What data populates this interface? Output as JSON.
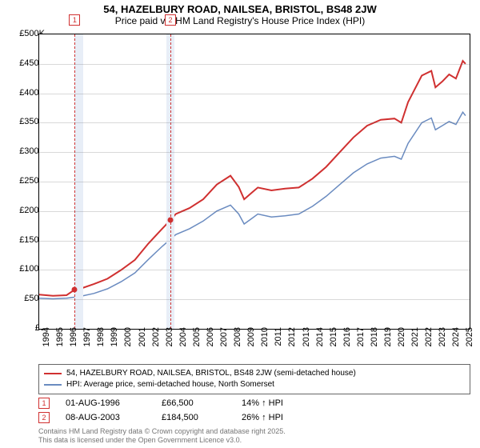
{
  "title": "54, HAZELBURY ROAD, NAILSEA, BRISTOL, BS48 2JW",
  "subtitle": "Price paid vs. HM Land Registry's House Price Index (HPI)",
  "chart": {
    "type": "line",
    "background_color": "#ffffff",
    "grid_color": "#aaaaaa",
    "shade_color": "#e8eef7",
    "x_domain": [
      1994,
      2025.5
    ],
    "y_domain": [
      0,
      500000
    ],
    "x_ticks": [
      1994,
      1995,
      1996,
      1997,
      1998,
      1999,
      2000,
      2001,
      2002,
      2003,
      2004,
      2005,
      2006,
      2007,
      2008,
      2009,
      2010,
      2011,
      2012,
      2013,
      2014,
      2015,
      2016,
      2017,
      2018,
      2019,
      2020,
      2021,
      2022,
      2023,
      2024,
      2025
    ],
    "y_ticks": [
      0,
      50000,
      100000,
      150000,
      200000,
      250000,
      300000,
      350000,
      400000,
      450000,
      500000
    ],
    "y_tick_labels": [
      "£0",
      "£50K",
      "£100K",
      "£150K",
      "£200K",
      "£250K",
      "£300K",
      "£350K",
      "£400K",
      "£450K",
      "£500K"
    ],
    "y_tick_fontsize": 11,
    "x_tick_fontsize": 11,
    "shaded_ranges": [
      [
        1996.6,
        1997.2
      ],
      [
        2003.3,
        2003.9
      ]
    ],
    "dashed_x": [
      1996.6,
      2003.6
    ],
    "series": [
      {
        "id": "property",
        "label": "54, HAZELBURY ROAD, NAILSEA, BRISTOL, BS48 2JW (semi-detached house)",
        "color": "#d03030",
        "width": 2,
        "data": [
          [
            1994,
            58000
          ],
          [
            1995,
            56000
          ],
          [
            1996,
            57000
          ],
          [
            1996.6,
            66500
          ],
          [
            1997,
            68000
          ],
          [
            1998,
            76000
          ],
          [
            1999,
            85000
          ],
          [
            2000,
            100000
          ],
          [
            2001,
            117000
          ],
          [
            2002,
            145000
          ],
          [
            2003,
            170000
          ],
          [
            2003.6,
            184500
          ],
          [
            2004,
            195000
          ],
          [
            2005,
            205000
          ],
          [
            2006,
            220000
          ],
          [
            2007,
            245000
          ],
          [
            2008,
            260000
          ],
          [
            2008.6,
            241000
          ],
          [
            2009,
            220000
          ],
          [
            2009.6,
            232000
          ],
          [
            2010,
            240000
          ],
          [
            2011,
            235000
          ],
          [
            2012,
            238000
          ],
          [
            2013,
            240000
          ],
          [
            2014,
            255000
          ],
          [
            2015,
            275000
          ],
          [
            2016,
            300000
          ],
          [
            2017,
            325000
          ],
          [
            2018,
            345000
          ],
          [
            2019,
            355000
          ],
          [
            2020,
            357000
          ],
          [
            2020.5,
            350000
          ],
          [
            2021,
            385000
          ],
          [
            2022,
            430000
          ],
          [
            2022.7,
            438000
          ],
          [
            2023,
            410000
          ],
          [
            2023.5,
            420000
          ],
          [
            2024,
            432000
          ],
          [
            2024.5,
            425000
          ],
          [
            2025,
            455000
          ],
          [
            2025.2,
            450000
          ]
        ]
      },
      {
        "id": "hpi",
        "label": "HPI: Average price, semi-detached house, North Somerset",
        "color": "#6a8bc0",
        "width": 1.5,
        "data": [
          [
            1994,
            52000
          ],
          [
            1995,
            51000
          ],
          [
            1996,
            52000
          ],
          [
            1997,
            55000
          ],
          [
            1998,
            60000
          ],
          [
            1999,
            68000
          ],
          [
            2000,
            80000
          ],
          [
            2001,
            95000
          ],
          [
            2002,
            118000
          ],
          [
            2003,
            140000
          ],
          [
            2004,
            160000
          ],
          [
            2005,
            170000
          ],
          [
            2006,
            183000
          ],
          [
            2007,
            200000
          ],
          [
            2008,
            210000
          ],
          [
            2008.6,
            195000
          ],
          [
            2009,
            178000
          ],
          [
            2009.6,
            188000
          ],
          [
            2010,
            195000
          ],
          [
            2011,
            190000
          ],
          [
            2012,
            192000
          ],
          [
            2013,
            195000
          ],
          [
            2014,
            208000
          ],
          [
            2015,
            225000
          ],
          [
            2016,
            245000
          ],
          [
            2017,
            265000
          ],
          [
            2018,
            280000
          ],
          [
            2019,
            290000
          ],
          [
            2020,
            293000
          ],
          [
            2020.5,
            288000
          ],
          [
            2021,
            315000
          ],
          [
            2022,
            350000
          ],
          [
            2022.7,
            358000
          ],
          [
            2023,
            338000
          ],
          [
            2023.5,
            345000
          ],
          [
            2024,
            352000
          ],
          [
            2024.5,
            347000
          ],
          [
            2025,
            368000
          ],
          [
            2025.2,
            362000
          ]
        ]
      }
    ],
    "markers": [
      {
        "n": "1",
        "x": 1996.6,
        "y": 66500
      },
      {
        "n": "2",
        "x": 2003.6,
        "y": 184500
      }
    ]
  },
  "legend": {
    "border_color": "#666666",
    "items": [
      {
        "color": "#d03030",
        "label": "54, HAZELBURY ROAD, NAILSEA, BRISTOL, BS48 2JW (semi-detached house)"
      },
      {
        "color": "#6a8bc0",
        "label": "HPI: Average price, semi-detached house, North Somerset"
      }
    ]
  },
  "events": [
    {
      "n": "1",
      "date": "01-AUG-1996",
      "price": "£66,500",
      "pct": "14% ↑ HPI"
    },
    {
      "n": "2",
      "date": "08-AUG-2003",
      "price": "£184,500",
      "pct": "26% ↑ HPI"
    }
  ],
  "footer": {
    "line1": "Contains HM Land Registry data © Crown copyright and database right 2025.",
    "line2": "This data is licensed under the Open Government Licence v3.0."
  }
}
